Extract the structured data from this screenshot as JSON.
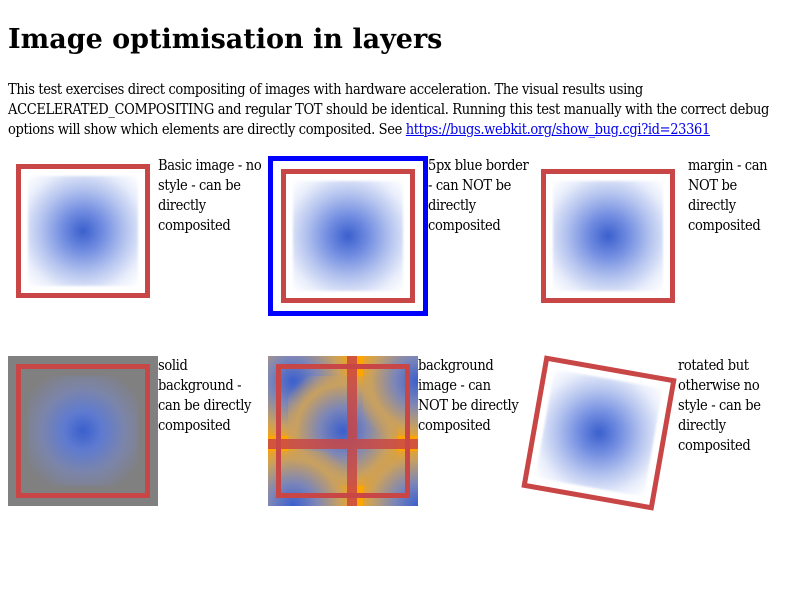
{
  "header": {
    "title": "Image optimisation in layers"
  },
  "intro": {
    "text": "This test exercises direct compositing of images with hardware acceleration. The visual results using ACCELERATED_COMPOSITING and regular TOT should be identical. Running this test manually with the correct debug options will show which elements are directly composited. See ",
    "link_text": "https://bugs.webkit.org/show_bug.cgi?id=23361"
  },
  "colors": {
    "frame_red": "#c84646",
    "blue_border": "#0000ff",
    "solid_background": "#808080",
    "orange_background": "#ffa500",
    "gradient_blue": "#3a5fcd",
    "link": "#0000ee"
  },
  "tests": [
    {
      "caption": "Basic image - no style - can be directly composited"
    },
    {
      "caption": "5px blue border - can NOT be directly composited"
    },
    {
      "caption": "margin - can NOT be directly composited"
    },
    {
      "caption": "solid background - can be directly composited"
    },
    {
      "caption": "background image - can NOT be directly composited"
    },
    {
      "caption": "rotated but otherwise no style - can be directly composited"
    }
  ]
}
